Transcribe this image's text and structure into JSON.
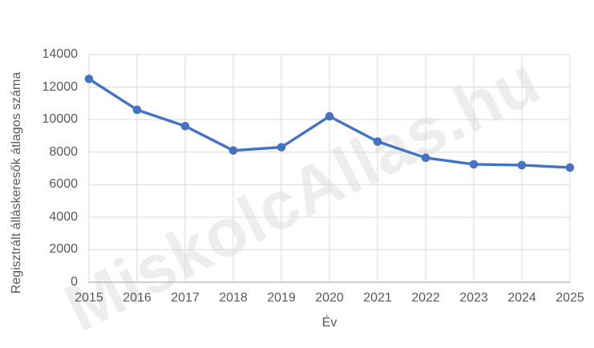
{
  "watermark": {
    "text": "MiskolcAllas.hu"
  },
  "colors": {
    "line": "#4472C4",
    "marker": "#4472C4",
    "gridline": "#D9D9D9",
    "axis_line": "#BFBFBF",
    "tick_text": "#595959",
    "watermark_text": "rgba(0,0,0,0.07)",
    "background": "#FFFFFF"
  },
  "chart_data": {
    "type": "line",
    "title": "",
    "xlabel": "Év",
    "ylabel": "Regisztrált álláskeresők átlagos száma",
    "categories": [
      "2015",
      "2016",
      "2017",
      "2018",
      "2019",
      "2020",
      "2021",
      "2022",
      "2023",
      "2024",
      "2025"
    ],
    "series": [
      {
        "name": "Regisztrált álláskeresők átlagos száma",
        "values": [
          12500,
          10600,
          9600,
          8100,
          8300,
          10200,
          8650,
          7650,
          7250,
          7200,
          7050
        ]
      }
    ],
    "ylim": [
      0,
      14000
    ],
    "y_ticks": [
      0,
      2000,
      4000,
      6000,
      8000,
      10000,
      12000,
      14000
    ],
    "grid": true,
    "legend": "none",
    "marker": "circle"
  }
}
